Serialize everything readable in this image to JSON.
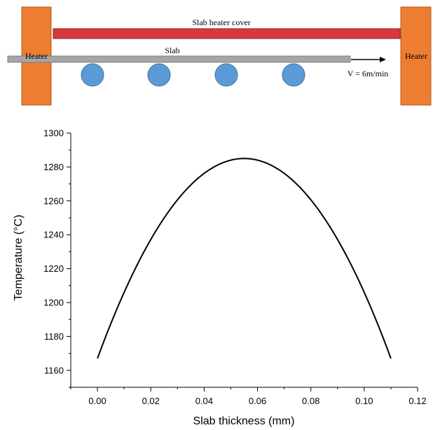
{
  "schematic": {
    "left_heater_label": "Heater",
    "right_heater_label": "Heater",
    "cover_label": "Slab heater cover",
    "slab_label": "Slab",
    "velocity_label": "V = 6m/min",
    "roller_count": 4,
    "colors": {
      "heater": "#ED7D31",
      "cover": "#D9383E",
      "slab": "#A6A6A6",
      "roller": "#5B9BD5"
    }
  },
  "chart_data": {
    "type": "line",
    "xlabel": "Slab thickness (mm)",
    "ylabel": "Temperature (°C)",
    "xlim": [
      -0.01,
      0.12
    ],
    "ylim": [
      1150,
      1300
    ],
    "x_ticks": [
      "0.00",
      "0.02",
      "0.04",
      "0.06",
      "0.08",
      "0.10",
      "0.12"
    ],
    "y_ticks": [
      "1160",
      "1180",
      "1200",
      "1220",
      "1240",
      "1260",
      "1280",
      "1300"
    ],
    "grid": false,
    "series": [
      {
        "color": "#000000",
        "x": [
          0.0,
          0.01,
          0.02,
          0.03,
          0.04,
          0.05,
          0.055,
          0.06,
          0.07,
          0.08,
          0.09,
          0.1,
          0.11
        ],
        "y": [
          1167,
          1205,
          1234,
          1256,
          1272,
          1281,
          1285,
          1281,
          1272,
          1256,
          1234,
          1205,
          1167
        ]
      }
    ]
  }
}
